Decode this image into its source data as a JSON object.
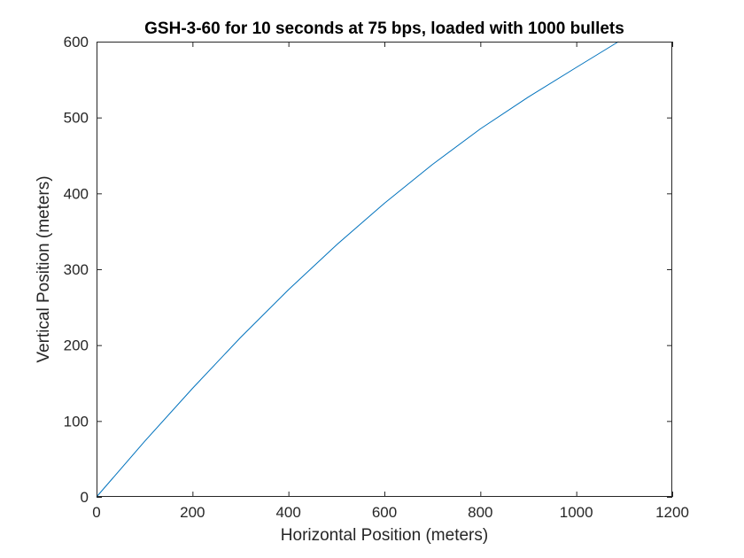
{
  "chart_data": {
    "type": "line",
    "title": "GSH-3-60 for 10 seconds at 75 bps, loaded with 1000 bullets",
    "xlabel": "Horizontal Position (meters)",
    "ylabel": "Vertical Position (meters)",
    "xlim": [
      0,
      1200
    ],
    "ylim": [
      0,
      600
    ],
    "xticks": [
      0,
      200,
      400,
      600,
      800,
      1000,
      1200
    ],
    "yticks": [
      0,
      100,
      200,
      300,
      400,
      500,
      600
    ],
    "xtick_labels": [
      "0",
      "200",
      "400",
      "600",
      "800",
      "1000",
      "1200"
    ],
    "ytick_labels": [
      "0",
      "100",
      "200",
      "300",
      "400",
      "500",
      "600"
    ],
    "grid": false,
    "series": [
      {
        "color": "#0072BD",
        "x": [
          0,
          100,
          200,
          300,
          400,
          500,
          600,
          700,
          800,
          900,
          1000,
          1088
        ],
        "y": [
          0,
          73,
          143,
          210,
          273,
          332,
          387,
          438,
          485,
          527,
          566,
          600
        ]
      }
    ]
  }
}
